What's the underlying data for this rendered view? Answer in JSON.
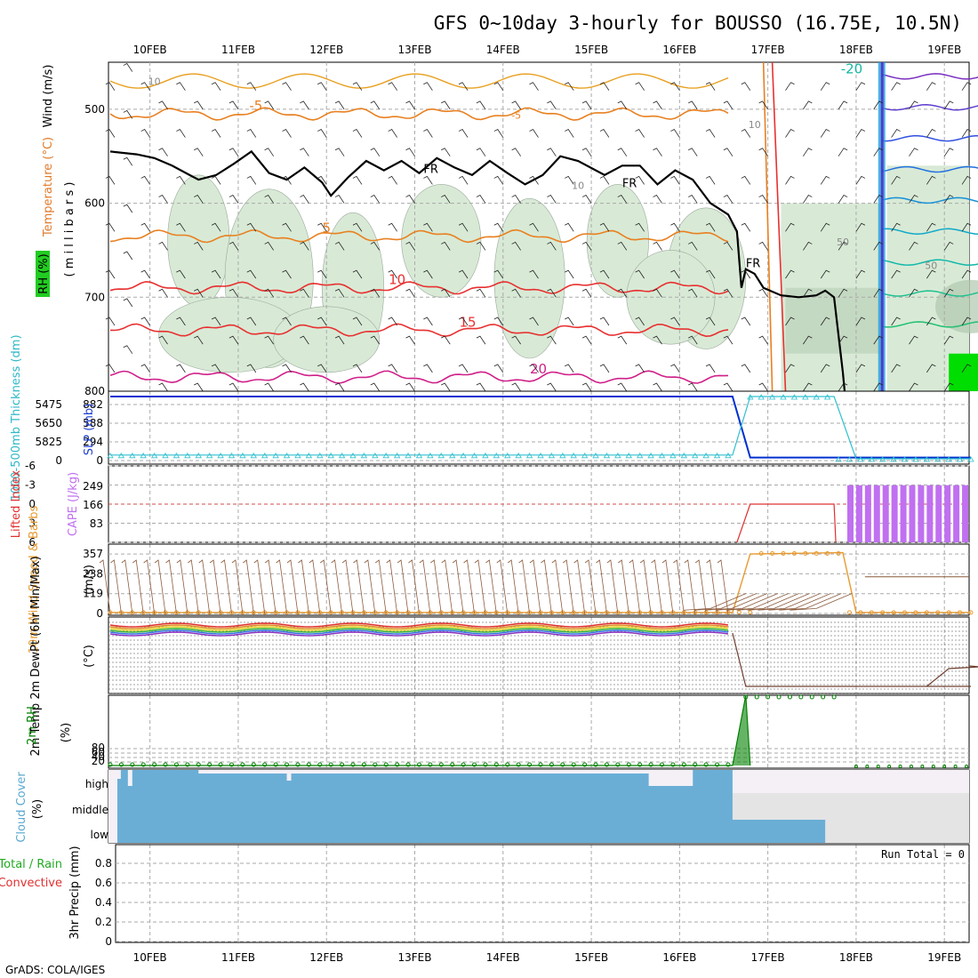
{
  "title": "GFS 0~10day 3-hourly for BOUSSO (16.75E, 10.5N)",
  "footer": "GrADS: COLA/IGES",
  "colors": {
    "grid": "#aaaaaa",
    "rh_fill": "#d8ead6",
    "rh_fill_dark": "#b0c8ae",
    "rh_fill_bright": "#00dd00",
    "temp_orange": "#e88020",
    "temp_red": "#e83030",
    "temp_magenta": "#d0208a",
    "freeze": "#000000",
    "slp": "#0030d0",
    "thickness": "#30c0d0",
    "cape": "#c070f0",
    "lifted": "#e03030",
    "wind10": "#e89a30",
    "barb10": "#8c5a3c",
    "rh2m": "#008000",
    "cloud": "#6aaed6",
    "cloud_empty": "#f4f0f6"
  },
  "chart_data": {
    "type": "meteogram",
    "time_axis": {
      "labels": [
        "10FEB",
        "11FEB",
        "12FEB",
        "13FEB",
        "14FEB",
        "15FEB",
        "16FEB",
        "17FEB",
        "18FEB",
        "19FEB"
      ],
      "start_offset_days": -0.47,
      "span_days": 9.75
    },
    "upper_panel": {
      "ylabel_wind": "Wind (m/s)",
      "ylabel_temp": "Temperature (°C)",
      "ylabel_rh": "RH (%)",
      "ylabel_units": "( m i l l i b a r s )",
      "y_ticks": [
        500,
        600,
        700,
        800
      ],
      "ylim": [
        450,
        800
      ],
      "contour_labels": [
        "10",
        "-5",
        "FR",
        "FR",
        "5",
        "10",
        "10",
        "15",
        "20",
        "10",
        "FR",
        "-20",
        "10",
        "50",
        "50"
      ],
      "temp_series": [
        {
          "label": "-5",
          "level": 505,
          "color": "orange"
        },
        {
          "label": "5",
          "level": 635,
          "color": "orange"
        },
        {
          "label": "10",
          "level": 690,
          "color": "red"
        },
        {
          "label": "15",
          "level": 735,
          "color": "red"
        },
        {
          "label": "20",
          "level": 785,
          "color": "magenta"
        }
      ],
      "freezing_level": [
        [
          0,
          545
        ],
        [
          0.3,
          548
        ],
        [
          0.5,
          552
        ],
        [
          0.7,
          560
        ],
        [
          0.9,
          570
        ],
        [
          1.0,
          575
        ],
        [
          1.2,
          570
        ],
        [
          1.4,
          558
        ],
        [
          1.6,
          545
        ],
        [
          1.8,
          568
        ],
        [
          2.0,
          575
        ],
        [
          2.2,
          562
        ],
        [
          2.4,
          578
        ],
        [
          2.5,
          592
        ],
        [
          2.7,
          572
        ],
        [
          2.9,
          555
        ],
        [
          3.1,
          565
        ],
        [
          3.3,
          555
        ],
        [
          3.5,
          568
        ],
        [
          3.7,
          552
        ],
        [
          3.9,
          562
        ],
        [
          4.1,
          570
        ],
        [
          4.3,
          555
        ],
        [
          4.5,
          568
        ],
        [
          4.7,
          580
        ],
        [
          4.9,
          570
        ],
        [
          5.1,
          550
        ],
        [
          5.3,
          555
        ],
        [
          5.6,
          570
        ],
        [
          5.8,
          560
        ],
        [
          6.0,
          560
        ],
        [
          6.2,
          580
        ],
        [
          6.4,
          565
        ],
        [
          6.6,
          575
        ],
        [
          6.8,
          600
        ],
        [
          7.0,
          612
        ],
        [
          7.1,
          630
        ],
        [
          7.15,
          690
        ],
        [
          7.2,
          670
        ],
        [
          7.3,
          675
        ],
        [
          7.4,
          690
        ],
        [
          7.6,
          698
        ],
        [
          7.8,
          700
        ],
        [
          8.0,
          698
        ],
        [
          8.1,
          693
        ],
        [
          8.2,
          700
        ],
        [
          8.3,
          780
        ],
        [
          8.32,
          800
        ]
      ],
      "rh_dark_bands": [
        [
          7.2,
          8.3,
          690,
          760
        ]
      ]
    },
    "slp_panel": {
      "ylabel_slp": "SLP (mb)",
      "ylabel_thick": "1000-500mb Thickness (dm)",
      "ticks_left": [
        "5475",
        "5650",
        "5825",
        "0"
      ],
      "ticks_right": [
        "882",
        "588",
        "294",
        "0"
      ],
      "ylim": [
        0,
        1000
      ],
      "slp": [
        [
          0,
          1000
        ],
        [
          7.05,
          1000
        ],
        [
          7.25,
          20
        ],
        [
          8.45,
          20
        ],
        [
          9.75,
          20
        ]
      ],
      "thickness": [
        [
          0,
          60
        ],
        [
          7.05,
          60
        ],
        [
          7.25,
          1000
        ],
        [
          8.2,
          1000
        ],
        [
          8.45,
          0
        ],
        [
          9.75,
          0
        ]
      ]
    },
    "cape_panel": {
      "ylabel_li": "Lifted Index",
      "ylabel_cape": "CAPE (J/kg)",
      "li_ticks": [
        "-6",
        "-3",
        "0",
        "3",
        "6"
      ],
      "cape_ticks": [
        "249",
        "166",
        "83"
      ],
      "li": [
        [
          7.25,
          0
        ],
        [
          8.2,
          0
        ]
      ],
      "cape_bars": [
        8.3,
        8.4,
        8.5,
        8.6,
        8.7,
        8.8,
        8.9,
        9.0,
        9.1,
        9.2,
        9.3,
        9.4,
        9.5,
        9.6
      ],
      "cape_value": 249
    },
    "wind_panel": {
      "ylabel": "10m Wind Speed & Barbs",
      "ylabel_units": "(m/s)",
      "ticks": [
        "357",
        "238",
        "119",
        "0"
      ],
      "ylim": [
        0,
        400
      ],
      "speed": [
        [
          0,
          6
        ],
        [
          7.05,
          6
        ],
        [
          7.25,
          357
        ],
        [
          8.3,
          365
        ],
        [
          8.45,
          6
        ],
        [
          9.75,
          6
        ]
      ]
    },
    "temp2m_panel": {
      "ylabel": "2m Temp 2m DewPt (6hr Min/Max)",
      "ylabel_units": "(°C)"
    },
    "rh2m_panel": {
      "ylabel": "2m RH",
      "ylabel_units": "(%)",
      "ticks": [
        "80",
        "60",
        "40",
        "20"
      ],
      "ylim": [
        0,
        1000
      ],
      "rh": [
        [
          0,
          20
        ],
        [
          7.05,
          20
        ],
        [
          7.2,
          1000
        ],
        [
          7.3,
          1000
        ]
      ]
    },
    "cloud_panel": {
      "ylabel": "Cloud Cover",
      "ylabel_units": "(%)",
      "layer_labels": [
        "high",
        "middle",
        "low"
      ],
      "high_end": 7.05,
      "middle_end": 7.05,
      "low_end": 8.1
    },
    "precip_panel": {
      "ylabel_left": "Total / Rain",
      "ylabel_left2": "Convective",
      "ylabel": "3hr Precip (mm)",
      "ticks": [
        "0.8",
        "0.6",
        "0.4",
        "0.2",
        "0"
      ],
      "run_total_label": "Run Total = 0"
    }
  }
}
